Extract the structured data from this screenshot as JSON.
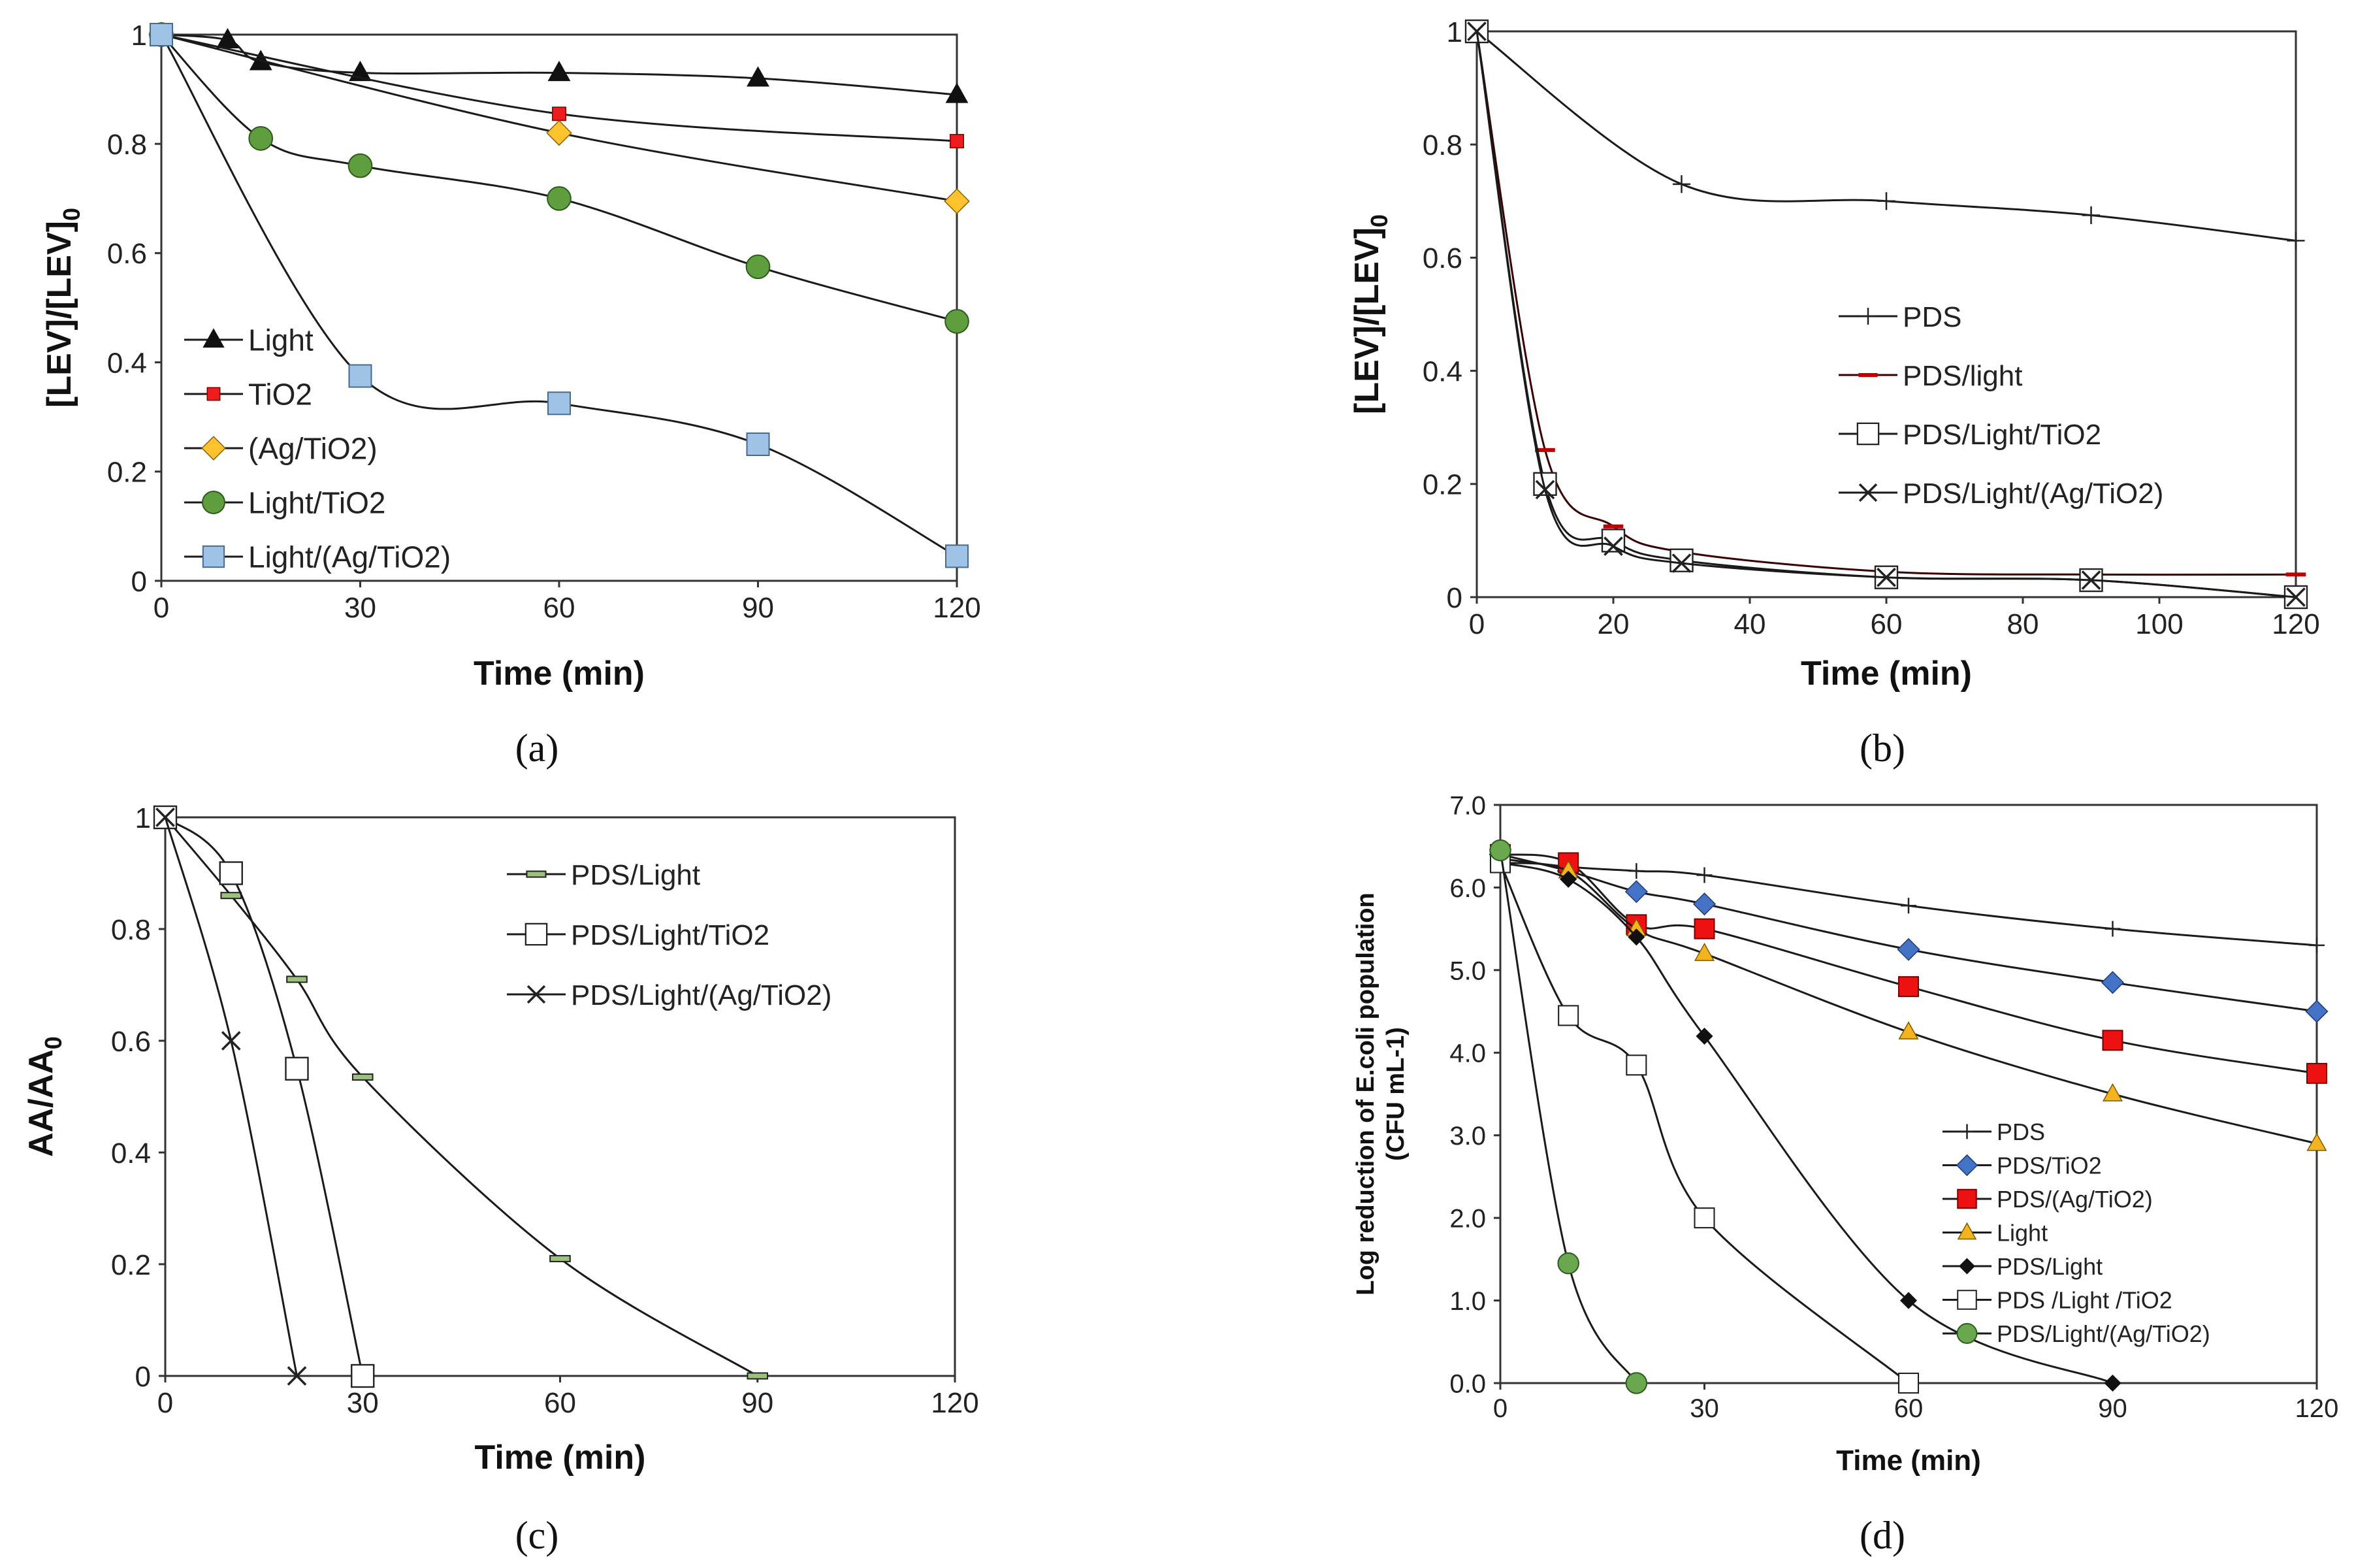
{
  "chart_data": [
    {
      "id": "a",
      "type": "line",
      "caption": "(a)",
      "xlabel": "Time (min)",
      "ylabel_main": "[LEV]/[LEV]",
      "ylabel_sub": "0",
      "xlim": [
        0,
        120
      ],
      "ylim": [
        0,
        1
      ],
      "xticks": [
        "0",
        "30",
        "60",
        "90",
        "120"
      ],
      "yticks": [
        "0",
        "0.2",
        "0.4",
        "0.6",
        "0.8",
        "1"
      ],
      "legend_position": "bottom-left",
      "series": [
        {
          "name": "Light",
          "marker": "triangle",
          "fill": "#111111",
          "x": [
            0,
            10,
            15,
            30,
            60,
            90,
            120
          ],
          "y": [
            1,
            0.99,
            0.95,
            0.93,
            0.93,
            0.92,
            0.89
          ]
        },
        {
          "name": "TiO2",
          "marker": "square-small",
          "fill": "#ee1c1c",
          "x": [
            0,
            60,
            120
          ],
          "y": [
            1,
            0.855,
            0.805
          ]
        },
        {
          "name": "(Ag/TiO2)",
          "marker": "diamond",
          "fill": "#fdc22e",
          "x": [
            0,
            60,
            120
          ],
          "y": [
            1,
            0.82,
            0.695
          ]
        },
        {
          "name": "Light/TiO2",
          "marker": "circle",
          "fill": "#5e9e3e",
          "x": [
            0,
            15,
            30,
            60,
            90,
            120
          ],
          "y": [
            1,
            0.81,
            0.76,
            0.7,
            0.575,
            0.475
          ]
        },
        {
          "name": "Light/(Ag/TiO2)",
          "marker": "square",
          "fill": "#9ec3e6",
          "x": [
            0,
            30,
            60,
            90,
            120
          ],
          "y": [
            1,
            0.375,
            0.325,
            0.25,
            0.045
          ]
        }
      ]
    },
    {
      "id": "b",
      "type": "line",
      "caption": "(b)",
      "xlabel": "Time (min)",
      "ylabel_main": "[LEV]/[LEV]",
      "ylabel_sub": "0",
      "xlim": [
        0,
        120
      ],
      "ylim": [
        0,
        1
      ],
      "xticks": [
        "0",
        "20",
        "40",
        "60",
        "80",
        "100",
        "120"
      ],
      "yticks": [
        "0",
        "0.2",
        "0.4",
        "0.6",
        "0.8",
        "1"
      ],
      "legend_position": "center",
      "series": [
        {
          "name": "PDS",
          "marker": "plus",
          "fill": "none",
          "x": [
            0,
            30,
            60,
            90,
            120
          ],
          "y": [
            1,
            0.73,
            0.7,
            0.675,
            0.63
          ]
        },
        {
          "name": "PDS/light",
          "marker": "dash-red",
          "fill": "none",
          "x": [
            0,
            10,
            20,
            30,
            60,
            90,
            120
          ],
          "y": [
            1,
            0.26,
            0.125,
            0.08,
            0.045,
            0.04,
            0.04
          ]
        },
        {
          "name": "PDS/Light/TiO2",
          "marker": "square-open",
          "fill": "none",
          "x": [
            0,
            10,
            20,
            30,
            60,
            90,
            120
          ],
          "y": [
            1,
            0.2,
            0.1,
            0.065,
            0.035,
            0.03,
            0
          ]
        },
        {
          "name": "PDS/Light/(Ag/TiO2)",
          "marker": "x",
          "fill": "none",
          "x": [
            0,
            10,
            20,
            30,
            60,
            90,
            120
          ],
          "y": [
            1,
            0.19,
            0.09,
            0.06,
            0.035,
            0.03,
            0
          ]
        }
      ]
    },
    {
      "id": "c",
      "type": "line",
      "caption": "(c)",
      "xlabel": "Time (min)",
      "ylabel_main": "AA/AA",
      "ylabel_sub": "0",
      "xlim": [
        0,
        120
      ],
      "ylim": [
        0,
        1
      ],
      "xticks": [
        "0",
        "30",
        "60",
        "90",
        "120"
      ],
      "yticks": [
        "0",
        "0.2",
        "0.4",
        "0.6",
        "0.8",
        "1"
      ],
      "legend_position": "top-right",
      "series": [
        {
          "name": "PDS/Light",
          "marker": "dash-green",
          "fill": "none",
          "x": [
            0,
            10,
            20,
            30,
            60,
            90
          ],
          "y": [
            1,
            0.86,
            0.71,
            0.535,
            0.21,
            0
          ]
        },
        {
          "name": "PDS/Light/TiO2",
          "marker": "square-open",
          "fill": "none",
          "x": [
            0,
            10,
            20,
            30
          ],
          "y": [
            1,
            0.9,
            0.55,
            0
          ]
        },
        {
          "name": "PDS/Light/(Ag/TiO2)",
          "marker": "x",
          "fill": "none",
          "x": [
            0,
            10,
            20
          ],
          "y": [
            1,
            0.6,
            0
          ]
        }
      ]
    },
    {
      "id": "d",
      "type": "line",
      "caption": "(d)",
      "xlabel": "Time (min)",
      "ylabel_line1": "Log reduction of E.coli population",
      "ylabel_line2": "(CFU mL-1)",
      "xlim": [
        0,
        120
      ],
      "ylim": [
        0,
        7
      ],
      "xticks": [
        "0",
        "30",
        "60",
        "90",
        "120"
      ],
      "yticks": [
        "0.0",
        "1.0",
        "2.0",
        "3.0",
        "4.0",
        "5.0",
        "6.0",
        "7.0"
      ],
      "legend_position": "bottom-right",
      "series": [
        {
          "name": "PDS",
          "marker": "plus",
          "fill": "none",
          "x": [
            0,
            10,
            20,
            30,
            60,
            90,
            120
          ],
          "y": [
            6.35,
            6.25,
            6.2,
            6.15,
            5.78,
            5.5,
            5.3
          ]
        },
        {
          "name": "PDS/TiO2",
          "marker": "diamond",
          "fill": "#4472c4",
          "x": [
            0,
            10,
            20,
            30,
            60,
            90,
            120
          ],
          "y": [
            6.4,
            6.2,
            5.95,
            5.8,
            5.25,
            4.85,
            4.5
          ]
        },
        {
          "name": "PDS/(Ag/TiO2)",
          "marker": "square",
          "fill": "#ee1111",
          "x": [
            0,
            10,
            20,
            30,
            60,
            90,
            120
          ],
          "y": [
            6.4,
            6.3,
            5.55,
            5.5,
            4.8,
            4.15,
            3.75
          ]
        },
        {
          "name": "Light",
          "marker": "triangle",
          "fill": "#f5b41e",
          "x": [
            0,
            10,
            20,
            30,
            60,
            90,
            120
          ],
          "y": [
            6.3,
            6.2,
            5.5,
            5.2,
            4.25,
            3.5,
            2.9
          ]
        },
        {
          "name": "PDS/Light",
          "marker": "diamond-small",
          "fill": "#111111",
          "x": [
            0,
            10,
            20,
            30,
            60,
            90
          ],
          "y": [
            6.3,
            6.1,
            5.4,
            4.2,
            1.0,
            0
          ]
        },
        {
          "name": "PDS /Light /TiO2",
          "marker": "square-open",
          "fill": "none",
          "x": [
            0,
            10,
            20,
            30,
            60
          ],
          "y": [
            6.3,
            4.45,
            3.85,
            2.0,
            0
          ]
        },
        {
          "name": "PDS/Light/(Ag/TiO2)",
          "marker": "circle",
          "fill": "#6aa84f",
          "x": [
            0,
            10,
            20
          ],
          "y": [
            6.45,
            1.45,
            0
          ]
        }
      ]
    }
  ]
}
